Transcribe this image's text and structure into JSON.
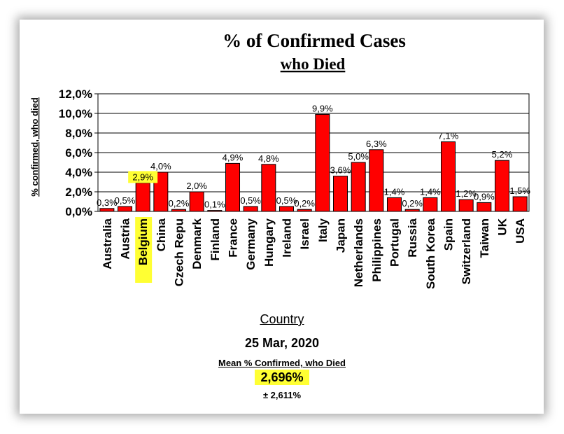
{
  "chart_data": {
    "type": "bar",
    "title": "% of Confirmed Cases",
    "subtitle": "who Died",
    "xlabel": "Country",
    "ylabel": "% confirmed, who died",
    "ylim": [
      0,
      12
    ],
    "yticks": [
      "0,0%",
      "2,0%",
      "4,0%",
      "6,0%",
      "8,0%",
      "10,0%",
      "12,0%"
    ],
    "grid": true,
    "bar_color": "#ff0000",
    "highlight_color": "#ffff33",
    "highlighted_category": "Belgium",
    "categories": [
      "Australia",
      "Austria",
      "Belgium",
      "China",
      "Czech Repu",
      "Denmark",
      "Finland",
      "France",
      "Germany",
      "Hungary",
      "Ireland",
      "Israel",
      "Italy",
      "Japan",
      "Netherlands",
      "Philippines",
      "Portugal",
      "Russia",
      "South Korea",
      "Spain",
      "Switzerland",
      "Taiwan",
      "UK",
      "USA"
    ],
    "values": [
      0.3,
      0.5,
      2.9,
      4.0,
      0.2,
      2.0,
      0.1,
      4.9,
      0.5,
      4.8,
      0.5,
      0.2,
      9.9,
      3.6,
      5.0,
      6.3,
      1.4,
      0.2,
      1.4,
      7.1,
      1.2,
      0.9,
      5.2,
      1.5
    ],
    "data_labels": [
      "0,3%",
      "0,5%",
      "2,9%",
      "4,0%",
      "0,2%",
      "2,0%",
      "0,1%",
      "4,9%",
      "0,5%",
      "4,8%",
      "0,5%",
      "0,2%",
      "9,9%",
      "3,6%",
      "5,0%",
      "6,3%",
      "1,4%",
      "0,2%",
      "1,4%",
      "7,1%",
      "1,2%",
      "0,9%",
      "5,2%",
      "1,5%"
    ]
  },
  "footer": {
    "date": "25 Mar, 2020",
    "mean_label": "Mean % Confirmed, who Died",
    "mean_value": "2,696%",
    "std_dev": "± 2,611%"
  }
}
